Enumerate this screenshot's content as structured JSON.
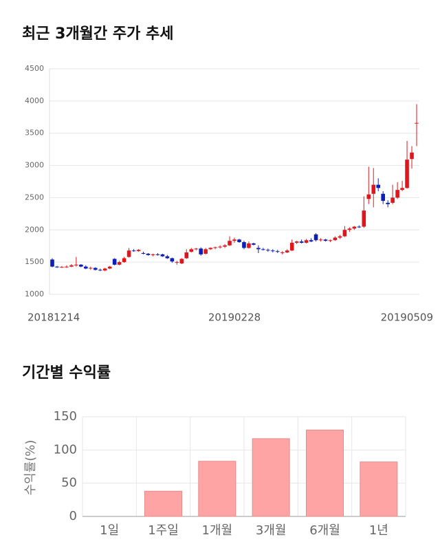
{
  "charts": [
    {
      "type": "candlestick",
      "title": "최근 3개월간 주가 추세",
      "categories": [
        "20181214",
        null,
        null,
        null,
        null,
        null,
        null,
        null,
        null,
        null,
        null,
        null,
        null,
        null,
        null,
        null,
        null,
        null,
        null,
        null,
        null,
        null,
        null,
        null,
        null,
        null,
        null,
        null,
        null,
        null,
        null,
        null,
        null,
        null,
        null,
        null,
        null,
        null,
        "20190228",
        null,
        null,
        null,
        null,
        null,
        null,
        null,
        null,
        null,
        null,
        null,
        null,
        null,
        null,
        null,
        null,
        null,
        null,
        null,
        null,
        null,
        null,
        null,
        null,
        null,
        null,
        null,
        null,
        null,
        null,
        null,
        null,
        null,
        null,
        null,
        null,
        null,
        "20190509"
      ],
      "open": [
        1540,
        1430,
        1420,
        1425,
        1430,
        1450,
        1460,
        1430,
        1400,
        1410,
        1380,
        1370,
        1400,
        1550,
        1460,
        1500,
        1580,
        1680,
        1670,
        1640,
        1630,
        1610,
        1620,
        1620,
        1590,
        1560,
        1490,
        1480,
        1560,
        1660,
        1700,
        1710,
        1630,
        1700,
        1720,
        1730,
        1740,
        1760,
        1830,
        1850,
        1810,
        1720,
        1790,
        1720,
        1700,
        1690,
        1680,
        1670,
        1640,
        1650,
        1680,
        1800,
        1820,
        1800,
        1840,
        1930,
        1840,
        1850,
        1830,
        1840,
        1880,
        1900,
        2000,
        2020,
        2050,
        2050,
        2480,
        2560,
        2700,
        2560,
        2420,
        2420,
        2500,
        2620,
        2650,
        3100,
        3650
      ],
      "high": [
        1560,
        1440,
        1440,
        1450,
        1470,
        1580,
        1470,
        1450,
        1430,
        1420,
        1400,
        1410,
        1440,
        1560,
        1520,
        1580,
        1720,
        1700,
        1700,
        1660,
        1640,
        1630,
        1640,
        1630,
        1610,
        1570,
        1520,
        1560,
        1700,
        1720,
        1720,
        1730,
        1720,
        1730,
        1740,
        1760,
        1780,
        1900,
        1880,
        1860,
        1830,
        1820,
        1800,
        1760,
        1720,
        1710,
        1700,
        1690,
        1670,
        1700,
        1850,
        1830,
        1850,
        1860,
        1870,
        1950,
        1870,
        1860,
        1850,
        1900,
        1920,
        2060,
        2040,
        2060,
        2070,
        2520,
        2980,
        2960,
        2800,
        2600,
        2460,
        2700,
        2740,
        2760,
        3380,
        3300,
        3950
      ],
      "low": [
        1420,
        1410,
        1410,
        1410,
        1420,
        1430,
        1420,
        1390,
        1380,
        1370,
        1360,
        1360,
        1390,
        1450,
        1450,
        1490,
        1570,
        1660,
        1660,
        1620,
        1600,
        1590,
        1600,
        1580,
        1550,
        1490,
        1460,
        1470,
        1550,
        1650,
        1680,
        1600,
        1620,
        1690,
        1700,
        1710,
        1720,
        1750,
        1800,
        1800,
        1700,
        1710,
        1760,
        1640,
        1680,
        1660,
        1650,
        1640,
        1620,
        1640,
        1670,
        1780,
        1790,
        1790,
        1810,
        1820,
        1820,
        1820,
        1810,
        1830,
        1860,
        1890,
        1970,
        2000,
        2030,
        2030,
        2400,
        2350,
        2600,
        2400,
        2350,
        2400,
        2480,
        2600,
        2640,
        2950,
        3300
      ],
      "close": [
        1430,
        1420,
        1425,
        1430,
        1450,
        1460,
        1430,
        1400,
        1410,
        1380,
        1370,
        1400,
        1430,
        1460,
        1500,
        1560,
        1680,
        1670,
        1690,
        1630,
        1610,
        1620,
        1610,
        1590,
        1560,
        1510,
        1500,
        1550,
        1650,
        1700,
        1710,
        1620,
        1700,
        1720,
        1730,
        1740,
        1760,
        1830,
        1850,
        1810,
        1720,
        1790,
        1770,
        1700,
        1690,
        1680,
        1670,
        1660,
        1650,
        1680,
        1800,
        1820,
        1800,
        1840,
        1820,
        1840,
        1850,
        1830,
        1840,
        1880,
        1900,
        2000,
        2020,
        2050,
        2040,
        2300,
        2550,
        2700,
        2650,
        2450,
        2400,
        2500,
        2620,
        2650,
        3090,
        3200,
        3660
      ],
      "up_color": "#e0161d",
      "down_color": "#0f1fb5",
      "ylim": [
        1000,
        4500
      ],
      "yticks": [
        1000,
        1500,
        2000,
        2500,
        3000,
        3500,
        4000,
        4500
      ],
      "grid": true
    },
    {
      "type": "bar",
      "title": "기간별 수익률",
      "y_label": "수익률(%)",
      "categories": [
        "1일",
        "1주일",
        "1개월",
        "3개월",
        "6개월",
        "1년"
      ],
      "values": [
        0,
        38,
        83,
        117,
        130,
        82
      ],
      "color": "#ffa4a4",
      "ylim": [
        0,
        150
      ],
      "yticks": [
        0,
        50,
        100,
        150
      ],
      "grid": true
    }
  ]
}
